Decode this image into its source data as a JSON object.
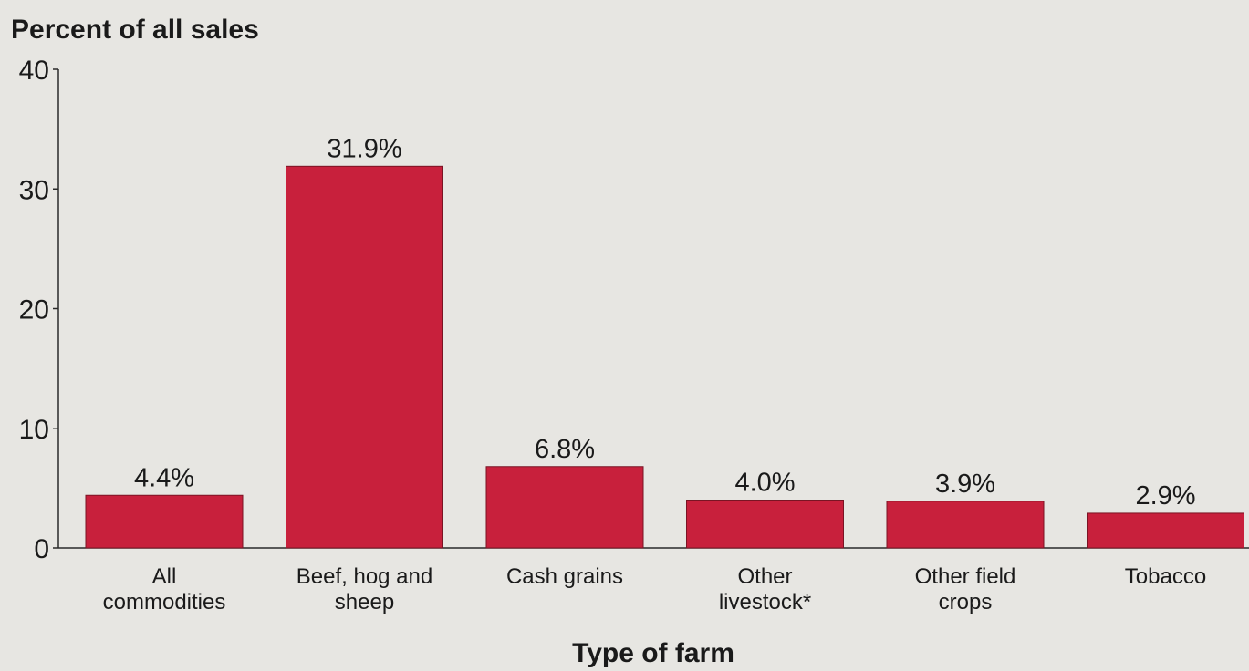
{
  "chart_data": {
    "type": "bar",
    "title": "",
    "ylabel": "Percent of all sales",
    "xlabel": "Type of farm",
    "ylim": [
      0,
      40
    ],
    "yticks": [
      0,
      10,
      20,
      30,
      40
    ],
    "categories": [
      [
        "All",
        "commodities"
      ],
      [
        "Beef, hog and",
        "sheep"
      ],
      [
        "Cash grains"
      ],
      [
        "Other",
        "livestock*"
      ],
      [
        "Other field",
        "crops"
      ],
      [
        "Tobacco"
      ]
    ],
    "values": [
      4.4,
      31.9,
      6.8,
      4.0,
      3.9,
      2.9
    ],
    "data_labels": [
      "4.4%",
      "31.9%",
      "6.8%",
      "4.0%",
      "3.9%",
      "2.9%"
    ],
    "bar_color": "#c8203c",
    "grid": false,
    "legend": "none"
  }
}
